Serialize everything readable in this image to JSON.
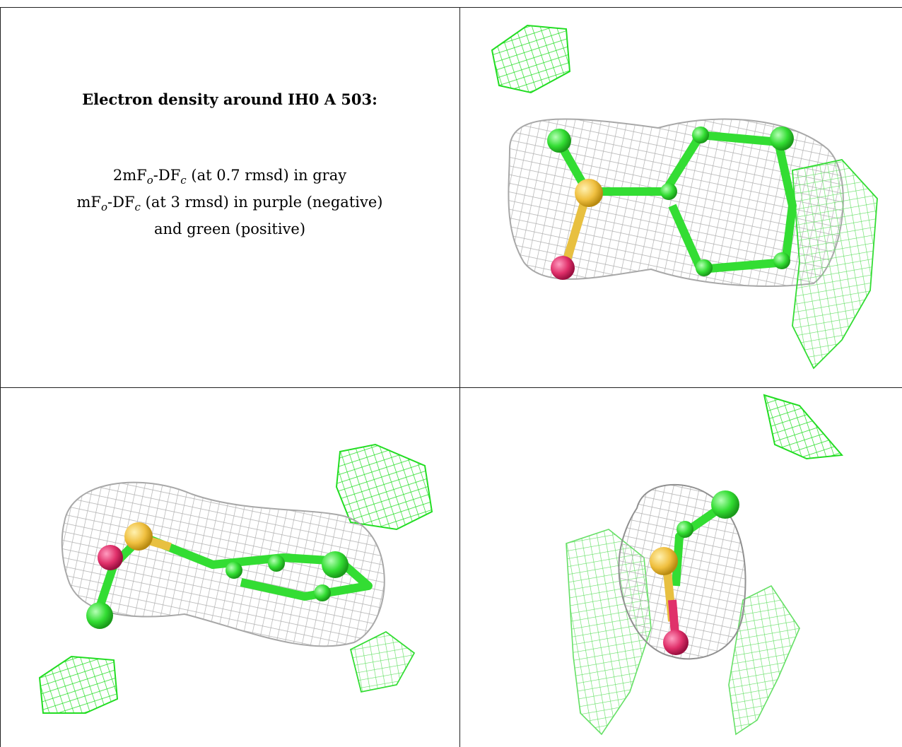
{
  "caption": {
    "title": "Electron density around IH0 A 503:",
    "line1_a": "2mF",
    "line1_sub1": "o",
    "line1_b": "-DF",
    "line1_sub2": "c",
    "line1_c": " (at 0.7 rmsd) in gray",
    "line2_a": "mF",
    "line2_sub1": "o",
    "line2_b": "-DF",
    "line2_sub2": "c",
    "line2_c": " (at 3 rmsd) in purple (negative)",
    "line3": "and green (positive)"
  },
  "colors": {
    "gray_mesh": "#b8b8b8",
    "green_mesh": "#22dd22",
    "light_green_mesh": "#88ee88",
    "carbon": "#33dd33",
    "sulfur": "#f0c040",
    "oxygen": "#e0306a"
  }
}
